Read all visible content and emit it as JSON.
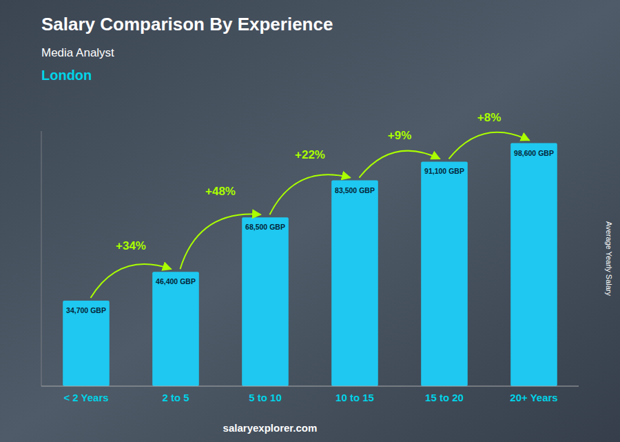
{
  "chart_data": {
    "type": "bar",
    "title": "Salary Comparison By Experience",
    "subtitles": [
      "Media Analyst",
      "London"
    ],
    "y_label": "Average Yearly Salary",
    "footer": "salaryexplorer.com",
    "categories": [
      "< 2 Years",
      "2 to 5",
      "5 to 10",
      "10 to 15",
      "15 to 20",
      "20+ Years"
    ],
    "values": [
      34700,
      46400,
      68500,
      83500,
      91100,
      98600
    ],
    "value_labels": [
      "34,700 GBP",
      "46,400 GBP",
      "68,500 GBP",
      "83,500 GBP",
      "91,100 GBP",
      "98,600 GBP"
    ],
    "annotations": [
      "+34%",
      "+48%",
      "+22%",
      "+9%",
      "+8%"
    ],
    "color": "#1ec8f0",
    "ylim": [
      0,
      103530
    ],
    "tick_labels": "x",
    "data_labels": true,
    "grid": false
  }
}
